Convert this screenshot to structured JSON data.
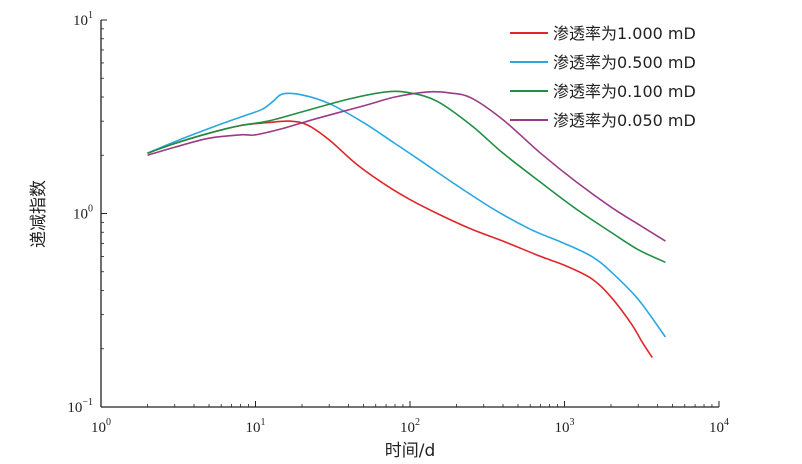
{
  "chart_data": {
    "type": "line",
    "title": "",
    "xlabel": "时间/d",
    "ylabel": "递减指数",
    "xscale": "log",
    "yscale": "log",
    "xlim": [
      1,
      10000
    ],
    "ylim": [
      0.1,
      10
    ],
    "x_ticks": [
      {
        "value": 1,
        "base": "10",
        "exp": "0"
      },
      {
        "value": 10,
        "base": "10",
        "exp": "1"
      },
      {
        "value": 100,
        "base": "10",
        "exp": "2"
      },
      {
        "value": 1000,
        "base": "10",
        "exp": "3"
      },
      {
        "value": 10000,
        "base": "10",
        "exp": "4"
      }
    ],
    "y_ticks": [
      {
        "value": 0.1,
        "base": "10",
        "exp": "−1"
      },
      {
        "value": 1,
        "base": "10",
        "exp": "0"
      },
      {
        "value": 10,
        "base": "10",
        "exp": "1"
      }
    ],
    "grid": false,
    "legend_position": "top-right",
    "series": [
      {
        "name": "渗透率为1.000 mD",
        "color": "#e0262a",
        "points": [
          [
            2,
            2.05
          ],
          [
            3,
            2.3
          ],
          [
            5,
            2.6
          ],
          [
            8,
            2.85
          ],
          [
            12,
            2.95
          ],
          [
            17,
            3.0
          ],
          [
            22,
            2.85
          ],
          [
            30,
            2.4
          ],
          [
            45,
            1.8
          ],
          [
            70,
            1.4
          ],
          [
            100,
            1.18
          ],
          [
            150,
            1.0
          ],
          [
            250,
            0.83
          ],
          [
            400,
            0.72
          ],
          [
            700,
            0.6
          ],
          [
            1000,
            0.54
          ],
          [
            1500,
            0.46
          ],
          [
            2000,
            0.37
          ],
          [
            2700,
            0.27
          ],
          [
            3200,
            0.215
          ],
          [
            3700,
            0.18
          ]
        ]
      },
      {
        "name": "渗透率为0.500 mD",
        "color": "#2aa7e2",
        "points": [
          [
            2,
            2.05
          ],
          [
            3,
            2.35
          ],
          [
            5,
            2.75
          ],
          [
            8,
            3.15
          ],
          [
            11,
            3.45
          ],
          [
            13,
            3.8
          ],
          [
            15,
            4.15
          ],
          [
            20,
            4.1
          ],
          [
            30,
            3.7
          ],
          [
            50,
            2.95
          ],
          [
            80,
            2.3
          ],
          [
            120,
            1.85
          ],
          [
            200,
            1.4
          ],
          [
            350,
            1.05
          ],
          [
            600,
            0.83
          ],
          [
            1000,
            0.7
          ],
          [
            1500,
            0.6
          ],
          [
            2000,
            0.5
          ],
          [
            3000,
            0.36
          ],
          [
            4500,
            0.23
          ]
        ]
      },
      {
        "name": "渗透率为0.100 mD",
        "color": "#1f8f43",
        "points": [
          [
            2,
            2.05
          ],
          [
            3,
            2.3
          ],
          [
            5,
            2.6
          ],
          [
            8,
            2.85
          ],
          [
            12,
            3.0
          ],
          [
            20,
            3.35
          ],
          [
            40,
            3.9
          ],
          [
            70,
            4.25
          ],
          [
            100,
            4.2
          ],
          [
            150,
            3.8
          ],
          [
            250,
            2.85
          ],
          [
            400,
            2.05
          ],
          [
            700,
            1.45
          ],
          [
            1200,
            1.05
          ],
          [
            2000,
            0.8
          ],
          [
            3000,
            0.65
          ],
          [
            4500,
            0.56
          ]
        ]
      },
      {
        "name": "渗透率为0.050 mD",
        "color": "#9b3b88",
        "points": [
          [
            2,
            2.0
          ],
          [
            3,
            2.2
          ],
          [
            5,
            2.45
          ],
          [
            8,
            2.55
          ],
          [
            10,
            2.55
          ],
          [
            15,
            2.75
          ],
          [
            25,
            3.1
          ],
          [
            50,
            3.6
          ],
          [
            80,
            4.0
          ],
          [
            130,
            4.25
          ],
          [
            180,
            4.2
          ],
          [
            250,
            3.95
          ],
          [
            400,
            3.05
          ],
          [
            700,
            2.05
          ],
          [
            1200,
            1.45
          ],
          [
            2000,
            1.08
          ],
          [
            3000,
            0.88
          ],
          [
            4500,
            0.72
          ]
        ]
      }
    ]
  }
}
